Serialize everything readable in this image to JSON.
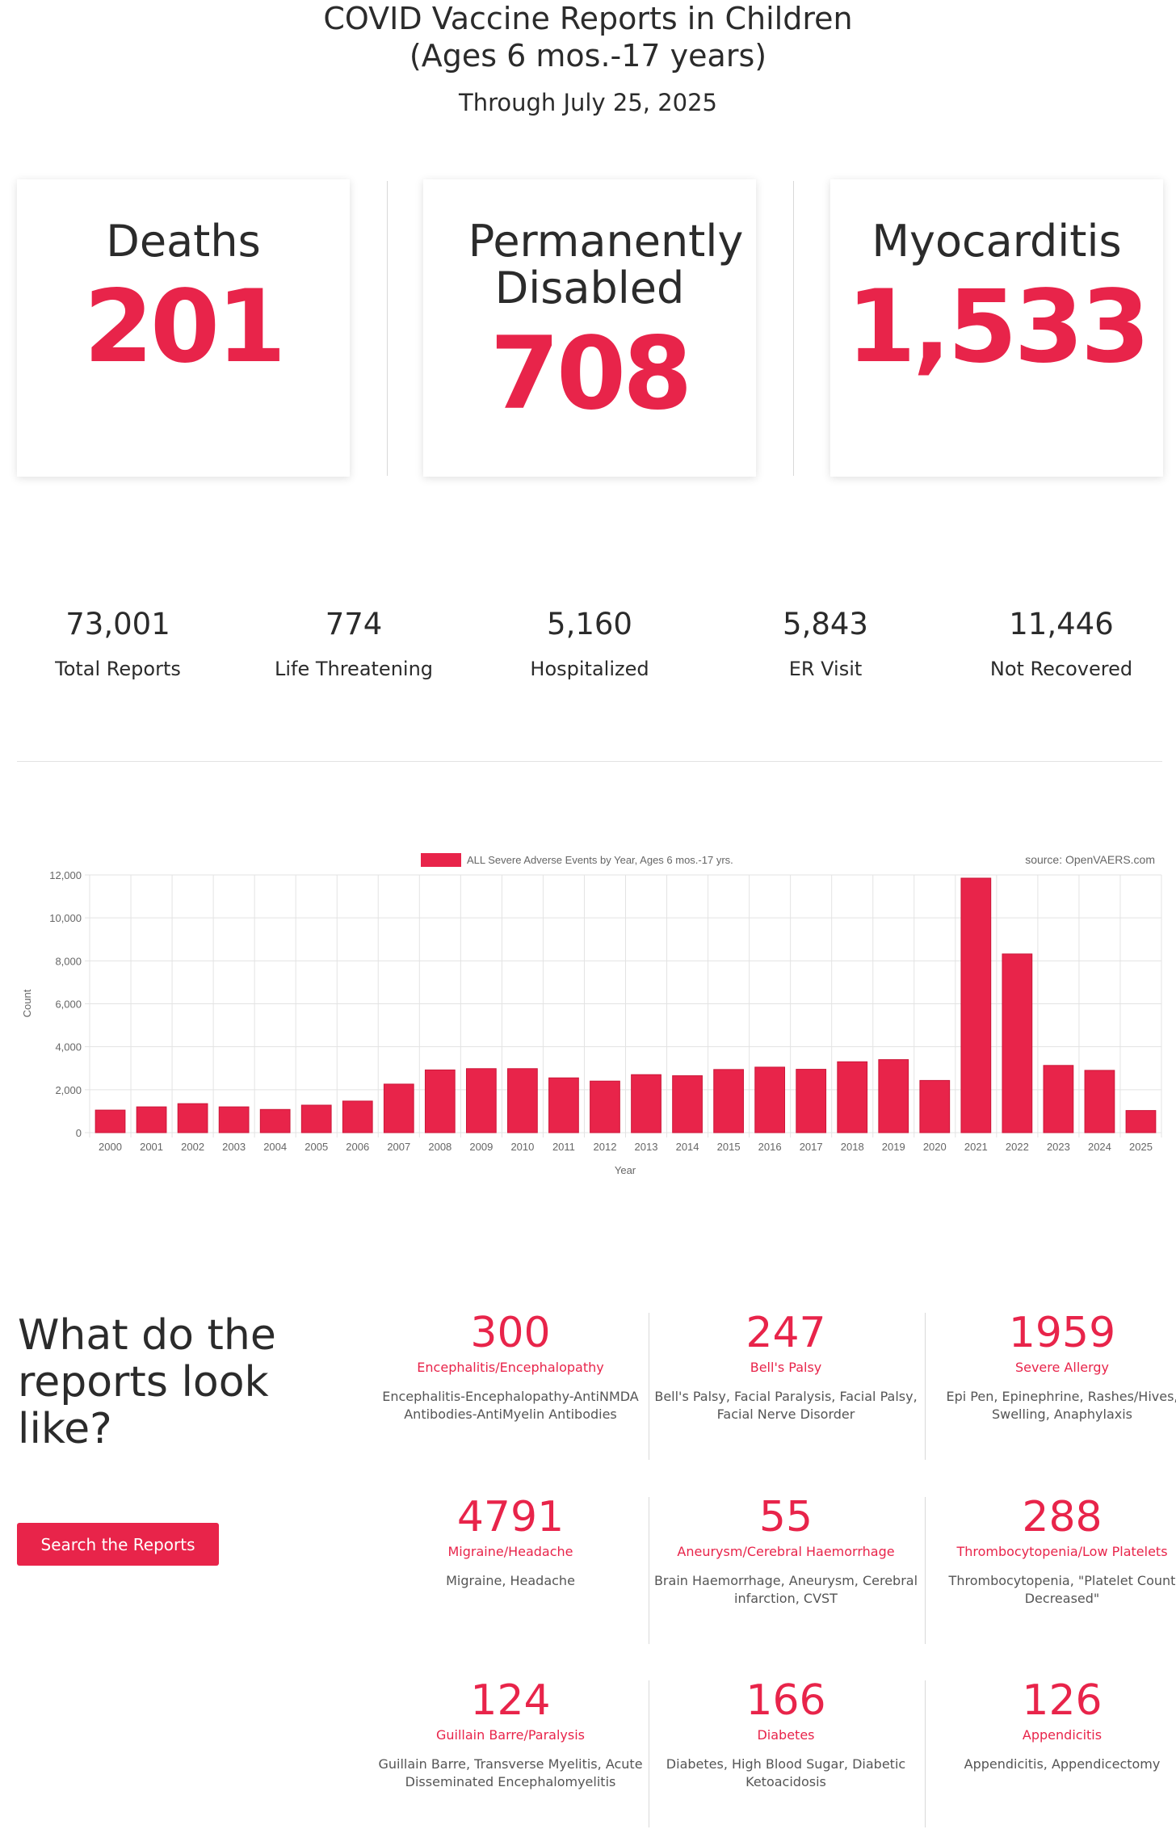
{
  "header": {
    "title_line1": "COVID Vaccine Reports in Children",
    "title_line2": "(Ages 6 mos.-17 years)",
    "subtitle": "Through July 25, 2025"
  },
  "cards": [
    {
      "title_line1": "Deaths",
      "title_line2": "",
      "value": "201"
    },
    {
      "title_line1": "Permanently",
      "title_line2": "Disabled",
      "value": "708"
    },
    {
      "title_line1": "Myocarditis",
      "title_line2": "",
      "value": "1,533"
    }
  ],
  "stats": [
    {
      "value": "73,001",
      "label": "Total Reports"
    },
    {
      "value": "774",
      "label": "Life Threatening"
    },
    {
      "value": "5,160",
      "label": "Hospitalized"
    },
    {
      "value": "5,843",
      "label": "ER Visit"
    },
    {
      "value": "11,446",
      "label": "Not Recovered"
    }
  ],
  "chart_data": {
    "type": "bar",
    "legend_label": "ALL Severe Adverse Events by Year, Ages 6 mos.-17 yrs.",
    "source": "source: OpenVAERS.com",
    "xlabel": "Year",
    "ylabel": "Count",
    "ylim": [
      0,
      12000
    ],
    "yticks": [
      "0",
      "2,000",
      "4,000",
      "6,000",
      "8,000",
      "10,000",
      "12,000"
    ],
    "grid": true,
    "legend_position": "top",
    "color": "#e8244a",
    "categories": [
      "2000",
      "2001",
      "2002",
      "2003",
      "2004",
      "2005",
      "2006",
      "2007",
      "2008",
      "2009",
      "2010",
      "2011",
      "2012",
      "2013",
      "2014",
      "2015",
      "2016",
      "2017",
      "2018",
      "2019",
      "2020",
      "2021",
      "2022",
      "2023",
      "2024",
      "2025"
    ],
    "values": [
      1050,
      1200,
      1350,
      1200,
      1080,
      1280,
      1470,
      2260,
      2920,
      2980,
      2980,
      2550,
      2400,
      2700,
      2650,
      2940,
      3050,
      2950,
      3300,
      3400,
      2430,
      11850,
      8320,
      3130,
      2900,
      1030
    ]
  },
  "section": {
    "question": "What do the reports look like?",
    "button_label": "Search the Reports",
    "items": [
      {
        "number": "300",
        "category": "Encephalitis/Encephalopathy",
        "desc": "Encephalitis-Encephalopathy-AntiNMDA Antibodies-AntiMyelin Antibodies"
      },
      {
        "number": "247",
        "category": "Bell's Palsy",
        "desc": "Bell's Palsy, Facial Paralysis, Facial Palsy, Facial Nerve Disorder"
      },
      {
        "number": "1959",
        "category": "Severe Allergy",
        "desc": "Epi Pen, Epinephrine, Rashes/Hives, Swelling, Anaphylaxis"
      },
      {
        "number": "4791",
        "category": "Migraine/Headache",
        "desc": "Migraine, Headache"
      },
      {
        "number": "55",
        "category": "Aneurysm/Cerebral Haemorrhage",
        "desc": "Brain Haemorrhage, Aneurysm, Cerebral infarction, CVST"
      },
      {
        "number": "288",
        "category": "Thrombocytopenia/Low Platelets",
        "desc": "Thrombocytopenia, \"Platelet Count Decreased\""
      },
      {
        "number": "124",
        "category": "Guillain Barre/Paralysis",
        "desc": "Guillain Barre, Transverse Myelitis, Acute Disseminated Encephalomyelitis"
      },
      {
        "number": "166",
        "category": "Diabetes",
        "desc": "Diabetes, High Blood Sugar, Diabetic Ketoacidosis"
      },
      {
        "number": "126",
        "category": "Appendicitis",
        "desc": "Appendicitis, Appendicectomy"
      }
    ]
  }
}
